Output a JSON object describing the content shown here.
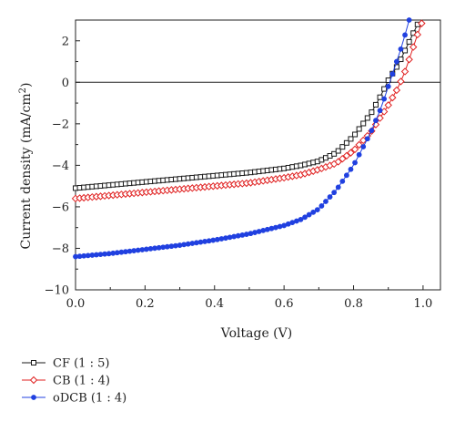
{
  "chart_data": {
    "type": "line",
    "xlabel": "Voltage (V)",
    "ylabel_main": "Current density (mA/cm",
    "ylabel_sup": "2",
    "ylabel_end": ")",
    "xlim": [
      0.0,
      1.05
    ],
    "ylim": [
      -10,
      3
    ],
    "xticks": [
      0.0,
      0.2,
      0.4,
      0.6,
      0.8,
      1.0
    ],
    "xtick_labels": [
      "0.0",
      "0.2",
      "0.4",
      "0.6",
      "0.8",
      "1.0"
    ],
    "yticks": [
      2,
      0,
      -2,
      -4,
      -6,
      -8,
      -10
    ],
    "ytick_labels": [
      "2",
      "0",
      "−2",
      "−4",
      "−6",
      "−8",
      "−10"
    ],
    "zero_line": true,
    "grid": false,
    "legend_position": "bottom-left, below plot",
    "series": [
      {
        "name": "CF (1 : 5)",
        "color": "#1a1a1a",
        "marker": "open-square",
        "points": [
          [
            0.0,
            -5.1
          ],
          [
            0.1,
            -4.95
          ],
          [
            0.2,
            -4.8
          ],
          [
            0.3,
            -4.65
          ],
          [
            0.4,
            -4.5
          ],
          [
            0.5,
            -4.35
          ],
          [
            0.6,
            -4.15
          ],
          [
            0.65,
            -4.0
          ],
          [
            0.7,
            -3.8
          ],
          [
            0.75,
            -3.4
          ],
          [
            0.8,
            -2.6
          ],
          [
            0.85,
            -1.5
          ],
          [
            0.88,
            -0.6
          ],
          [
            0.9,
            0.1
          ],
          [
            0.93,
            0.9
          ],
          [
            0.95,
            1.6
          ],
          [
            0.97,
            2.3
          ],
          [
            0.99,
            3.0
          ]
        ]
      },
      {
        "name": "CB (1 : 4)",
        "color": "#e02020",
        "marker": "open-diamond",
        "points": [
          [
            0.0,
            -5.6
          ],
          [
            0.1,
            -5.45
          ],
          [
            0.2,
            -5.3
          ],
          [
            0.3,
            -5.15
          ],
          [
            0.4,
            -5.0
          ],
          [
            0.5,
            -4.85
          ],
          [
            0.6,
            -4.6
          ],
          [
            0.65,
            -4.45
          ],
          [
            0.7,
            -4.2
          ],
          [
            0.75,
            -3.9
          ],
          [
            0.8,
            -3.3
          ],
          [
            0.85,
            -2.4
          ],
          [
            0.9,
            -1.1
          ],
          [
            0.93,
            -0.2
          ],
          [
            0.95,
            0.6
          ],
          [
            0.97,
            1.6
          ],
          [
            0.99,
            2.6
          ],
          [
            1.0,
            3.0
          ]
        ]
      },
      {
        "name": "oDCB (1 : 4)",
        "color": "#2040e0",
        "marker": "filled-circle",
        "points": [
          [
            0.0,
            -8.4
          ],
          [
            0.1,
            -8.25
          ],
          [
            0.2,
            -8.05
          ],
          [
            0.3,
            -7.85
          ],
          [
            0.4,
            -7.6
          ],
          [
            0.5,
            -7.3
          ],
          [
            0.6,
            -6.9
          ],
          [
            0.65,
            -6.6
          ],
          [
            0.7,
            -6.1
          ],
          [
            0.75,
            -5.2
          ],
          [
            0.8,
            -4.0
          ],
          [
            0.85,
            -2.4
          ],
          [
            0.88,
            -1.2
          ],
          [
            0.9,
            -0.2
          ],
          [
            0.92,
            0.8
          ],
          [
            0.94,
            1.8
          ],
          [
            0.96,
            3.0
          ]
        ]
      }
    ]
  }
}
